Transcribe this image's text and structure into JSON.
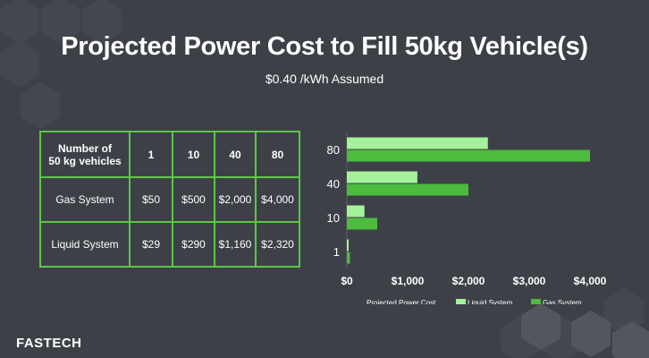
{
  "title": "Projected Power Cost to Fill 50kg Vehicle(s)",
  "subtitle": "$0.40 /kWh Assumed",
  "brand": "FASTECH",
  "table": {
    "header": [
      "Number of\n50 kg vehicles",
      "1",
      "10",
      "40",
      "80"
    ],
    "rows": [
      [
        "Gas System",
        "$50",
        "$500",
        "$2,000",
        "$4,000"
      ],
      [
        "Liquid System",
        "$29",
        "$290",
        "$1,160",
        "$2,320"
      ]
    ]
  },
  "colors": {
    "background": "#3d4147",
    "liquid": "#a6f29b",
    "gas": "#4cbb3e",
    "table_border": "#5cc646",
    "hex_dark": "#44484e",
    "hex_light": "#53575d"
  },
  "chart_data": {
    "type": "bar",
    "orientation": "horizontal",
    "title": "",
    "xlabel": "Projected Power Cost",
    "ylabel": "",
    "categories": [
      "1",
      "10",
      "40",
      "80"
    ],
    "series": [
      {
        "name": "Liquid System",
        "values": [
          29,
          290,
          1160,
          2320
        ]
      },
      {
        "name": "Gas System",
        "values": [
          50,
          500,
          2000,
          4000
        ]
      }
    ],
    "xlim": [
      0,
      4000
    ],
    "xticks": [
      0,
      1000,
      2000,
      3000,
      4000
    ],
    "xtick_labels": [
      "$0",
      "$1,000",
      "$2,000",
      "$3,000",
      "$4,000"
    ],
    "legend_title": "Projected Power Cost",
    "legend_position": "bottom",
    "grid": false
  }
}
